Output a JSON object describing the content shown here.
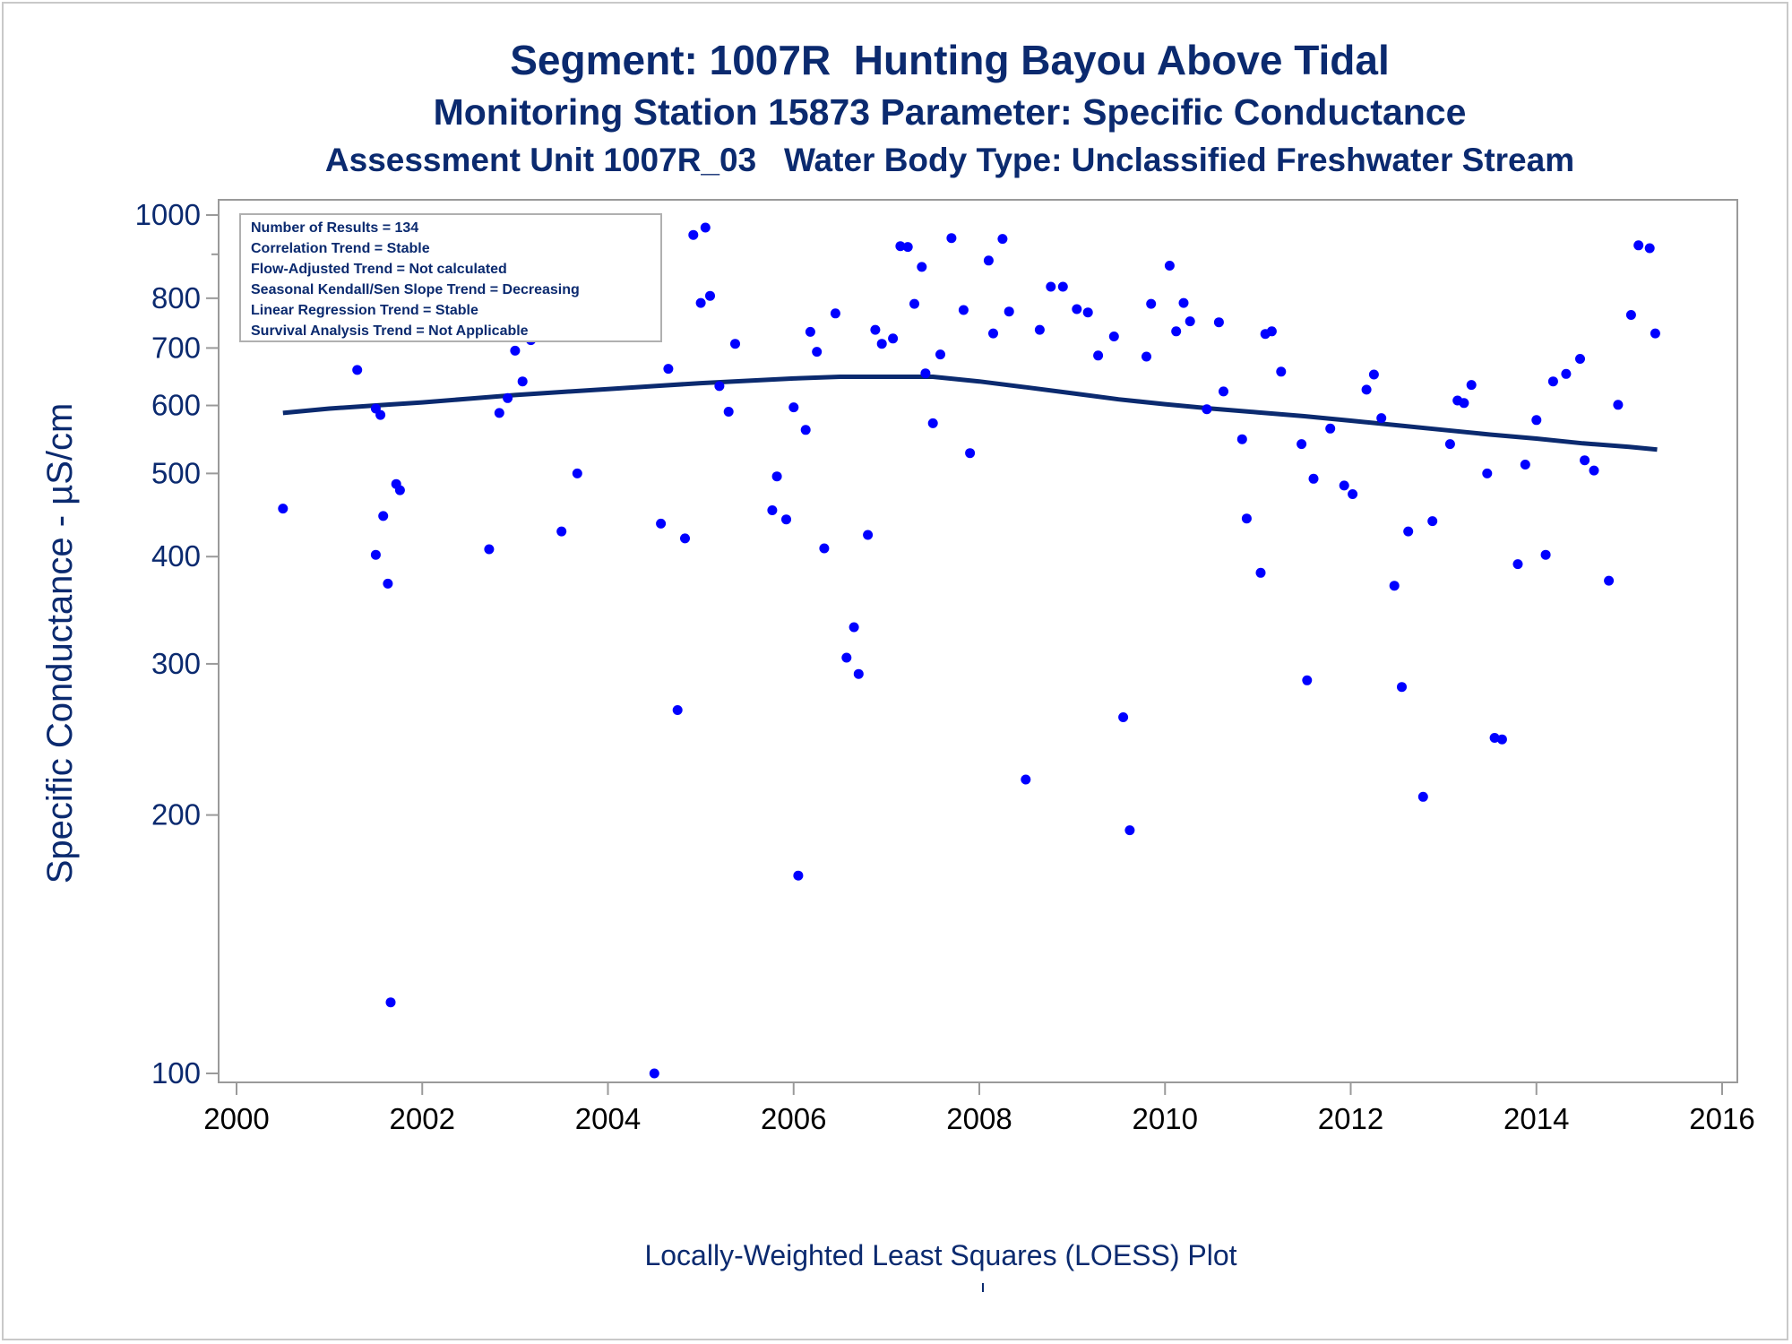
{
  "titles": {
    "line1": "Segment: 1007R  Hunting Bayou Above Tidal",
    "line2": "Monitoring Station 15873 Parameter: Specific Conductance",
    "line3": "Assessment Unit 1007R_03   Water Body Type: Unclassified Freshwater Stream"
  },
  "footnote": "Locally-Weighted Least Squares (LOESS) Plot",
  "colors": {
    "text": "#0b2a6f",
    "points": "#0000ff",
    "curve": "#0b2a6f",
    "axis": "#9a9a9a"
  },
  "stats_box": [
    "Number of Results = 134",
    "Correlation Trend = Stable",
    "Flow-Adjusted Trend = Not calculated",
    "Seasonal Kendall/Sen Slope Trend = Decreasing",
    "Linear Regression Trend = Stable",
    "Survival Analysis Trend = Not Applicable"
  ],
  "chart_data": {
    "type": "scatter",
    "ylabel": "Specific Conductance -  µS/cm",
    "xlim": [
      2000,
      2016
    ],
    "ylim": [
      100,
      1000
    ],
    "y_scale": "log",
    "x_ticks": [
      2000,
      2002,
      2004,
      2006,
      2008,
      2010,
      2012,
      2014,
      2016
    ],
    "y_ticks": [
      100,
      200,
      300,
      400,
      500,
      600,
      700,
      800,
      1000
    ],
    "legend_position": "top-left",
    "series": [
      {
        "kind": "points",
        "points": [
          [
            2000.5,
            455
          ],
          [
            2001.3,
            660
          ],
          [
            2001.5,
            595
          ],
          [
            2001.55,
            585
          ],
          [
            2001.5,
            402
          ],
          [
            2001.58,
            446
          ],
          [
            2001.63,
            372
          ],
          [
            2001.66,
            121
          ],
          [
            2001.72,
            486
          ],
          [
            2001.76,
            478
          ],
          [
            2002.72,
            408
          ],
          [
            2002.83,
            588
          ],
          [
            2002.92,
            612
          ],
          [
            2003.0,
            695
          ],
          [
            2003.08,
            640
          ],
          [
            2003.17,
            715
          ],
          [
            2003.33,
            866
          ],
          [
            2003.42,
            737
          ],
          [
            2003.5,
            428
          ],
          [
            2003.6,
            880
          ],
          [
            2003.67,
            500
          ],
          [
            2003.75,
            775
          ],
          [
            2003.83,
            960
          ],
          [
            2003.87,
            815
          ],
          [
            2003.97,
            905
          ],
          [
            2004.05,
            960
          ],
          [
            2004.12,
            990
          ],
          [
            2004.2,
            957
          ],
          [
            2004.33,
            980
          ],
          [
            2004.42,
            975
          ],
          [
            2004.5,
            100
          ],
          [
            2004.57,
            437
          ],
          [
            2004.65,
            662
          ],
          [
            2004.75,
            265
          ],
          [
            2004.83,
            420
          ],
          [
            2004.92,
            948
          ],
          [
            2005.0,
            790
          ],
          [
            2005.05,
            967
          ],
          [
            2005.1,
            805
          ],
          [
            2005.2,
            632
          ],
          [
            2005.3,
            590
          ],
          [
            2005.37,
            708
          ],
          [
            2005.77,
            453
          ],
          [
            2005.82,
            496
          ],
          [
            2005.92,
            442
          ],
          [
            2006.0,
            597
          ],
          [
            2006.05,
            170
          ],
          [
            2006.13,
            562
          ],
          [
            2006.18,
            731
          ],
          [
            2006.25,
            693
          ],
          [
            2006.33,
            409
          ],
          [
            2006.45,
            768
          ],
          [
            2006.57,
            305
          ],
          [
            2006.65,
            331
          ],
          [
            2006.7,
            292
          ],
          [
            2006.8,
            424
          ],
          [
            2006.88,
            735
          ],
          [
            2006.95,
            708
          ],
          [
            2007.07,
            718
          ],
          [
            2007.15,
            920
          ],
          [
            2007.23,
            918
          ],
          [
            2007.3,
            788
          ],
          [
            2007.38,
            870
          ],
          [
            2007.42,
            654
          ],
          [
            2007.5,
            572
          ],
          [
            2007.58,
            688
          ],
          [
            2007.7,
            940
          ],
          [
            2007.83,
            775
          ],
          [
            2007.9,
            528
          ],
          [
            2008.1,
            885
          ],
          [
            2008.15,
            728
          ],
          [
            2008.25,
            938
          ],
          [
            2008.32,
            772
          ],
          [
            2008.5,
            220
          ],
          [
            2008.65,
            735
          ],
          [
            2008.77,
            825
          ],
          [
            2008.9,
            825
          ],
          [
            2009.05,
            777
          ],
          [
            2009.17,
            770
          ],
          [
            2009.28,
            686
          ],
          [
            2009.45,
            722
          ],
          [
            2009.55,
            260
          ],
          [
            2009.62,
            192
          ],
          [
            2009.8,
            684
          ],
          [
            2009.85,
            788
          ],
          [
            2010.05,
            873
          ],
          [
            2010.12,
            732
          ],
          [
            2010.2,
            790
          ],
          [
            2010.27,
            752
          ],
          [
            2010.45,
            594
          ],
          [
            2010.58,
            750
          ],
          [
            2010.63,
            623
          ],
          [
            2010.83,
            548
          ],
          [
            2010.88,
            443
          ],
          [
            2011.03,
            383
          ],
          [
            2011.08,
            727
          ],
          [
            2011.15,
            732
          ],
          [
            2011.25,
            657
          ],
          [
            2011.47,
            541
          ],
          [
            2011.53,
            287
          ],
          [
            2011.6,
            493
          ],
          [
            2011.78,
            564
          ],
          [
            2011.93,
            484
          ],
          [
            2012.02,
            473
          ],
          [
            2012.17,
            626
          ],
          [
            2012.25,
            652
          ],
          [
            2012.33,
            580
          ],
          [
            2012.47,
            370
          ],
          [
            2012.55,
            282
          ],
          [
            2012.62,
            428
          ],
          [
            2012.78,
            210
          ],
          [
            2012.88,
            440
          ],
          [
            2013.07,
            541
          ],
          [
            2013.15,
            608
          ],
          [
            2013.22,
            604
          ],
          [
            2013.3,
            634
          ],
          [
            2013.47,
            500
          ],
          [
            2013.55,
            246
          ],
          [
            2013.63,
            245
          ],
          [
            2013.8,
            392
          ],
          [
            2013.88,
            512
          ],
          [
            2014.0,
            577
          ],
          [
            2014.1,
            402
          ],
          [
            2014.18,
            640
          ],
          [
            2014.32,
            653
          ],
          [
            2014.47,
            680
          ],
          [
            2014.52,
            518
          ],
          [
            2014.62,
            504
          ],
          [
            2014.78,
            375
          ],
          [
            2014.88,
            601
          ],
          [
            2015.02,
            765
          ],
          [
            2015.1,
            922
          ],
          [
            2015.22,
            915
          ],
          [
            2015.28,
            728
          ]
        ]
      },
      {
        "kind": "loess-curve",
        "points": [
          [
            2000.5,
            588
          ],
          [
            2001.0,
            595
          ],
          [
            2001.5,
            600
          ],
          [
            2002.0,
            605
          ],
          [
            2002.5,
            611
          ],
          [
            2003.0,
            617
          ],
          [
            2003.5,
            622
          ],
          [
            2004.0,
            627
          ],
          [
            2004.5,
            632
          ],
          [
            2005.0,
            637
          ],
          [
            2005.5,
            641
          ],
          [
            2006.0,
            645
          ],
          [
            2006.5,
            648
          ],
          [
            2007.0,
            648
          ],
          [
            2007.5,
            648
          ],
          [
            2008.0,
            640
          ],
          [
            2008.5,
            630
          ],
          [
            2009.0,
            620
          ],
          [
            2009.5,
            610
          ],
          [
            2010.0,
            602
          ],
          [
            2010.5,
            595
          ],
          [
            2011.0,
            589
          ],
          [
            2011.5,
            583
          ],
          [
            2012.0,
            576
          ],
          [
            2012.5,
            569
          ],
          [
            2013.0,
            562
          ],
          [
            2013.5,
            555
          ],
          [
            2014.0,
            549
          ],
          [
            2014.5,
            542
          ],
          [
            2015.0,
            537
          ],
          [
            2015.3,
            533
          ]
        ]
      }
    ]
  }
}
